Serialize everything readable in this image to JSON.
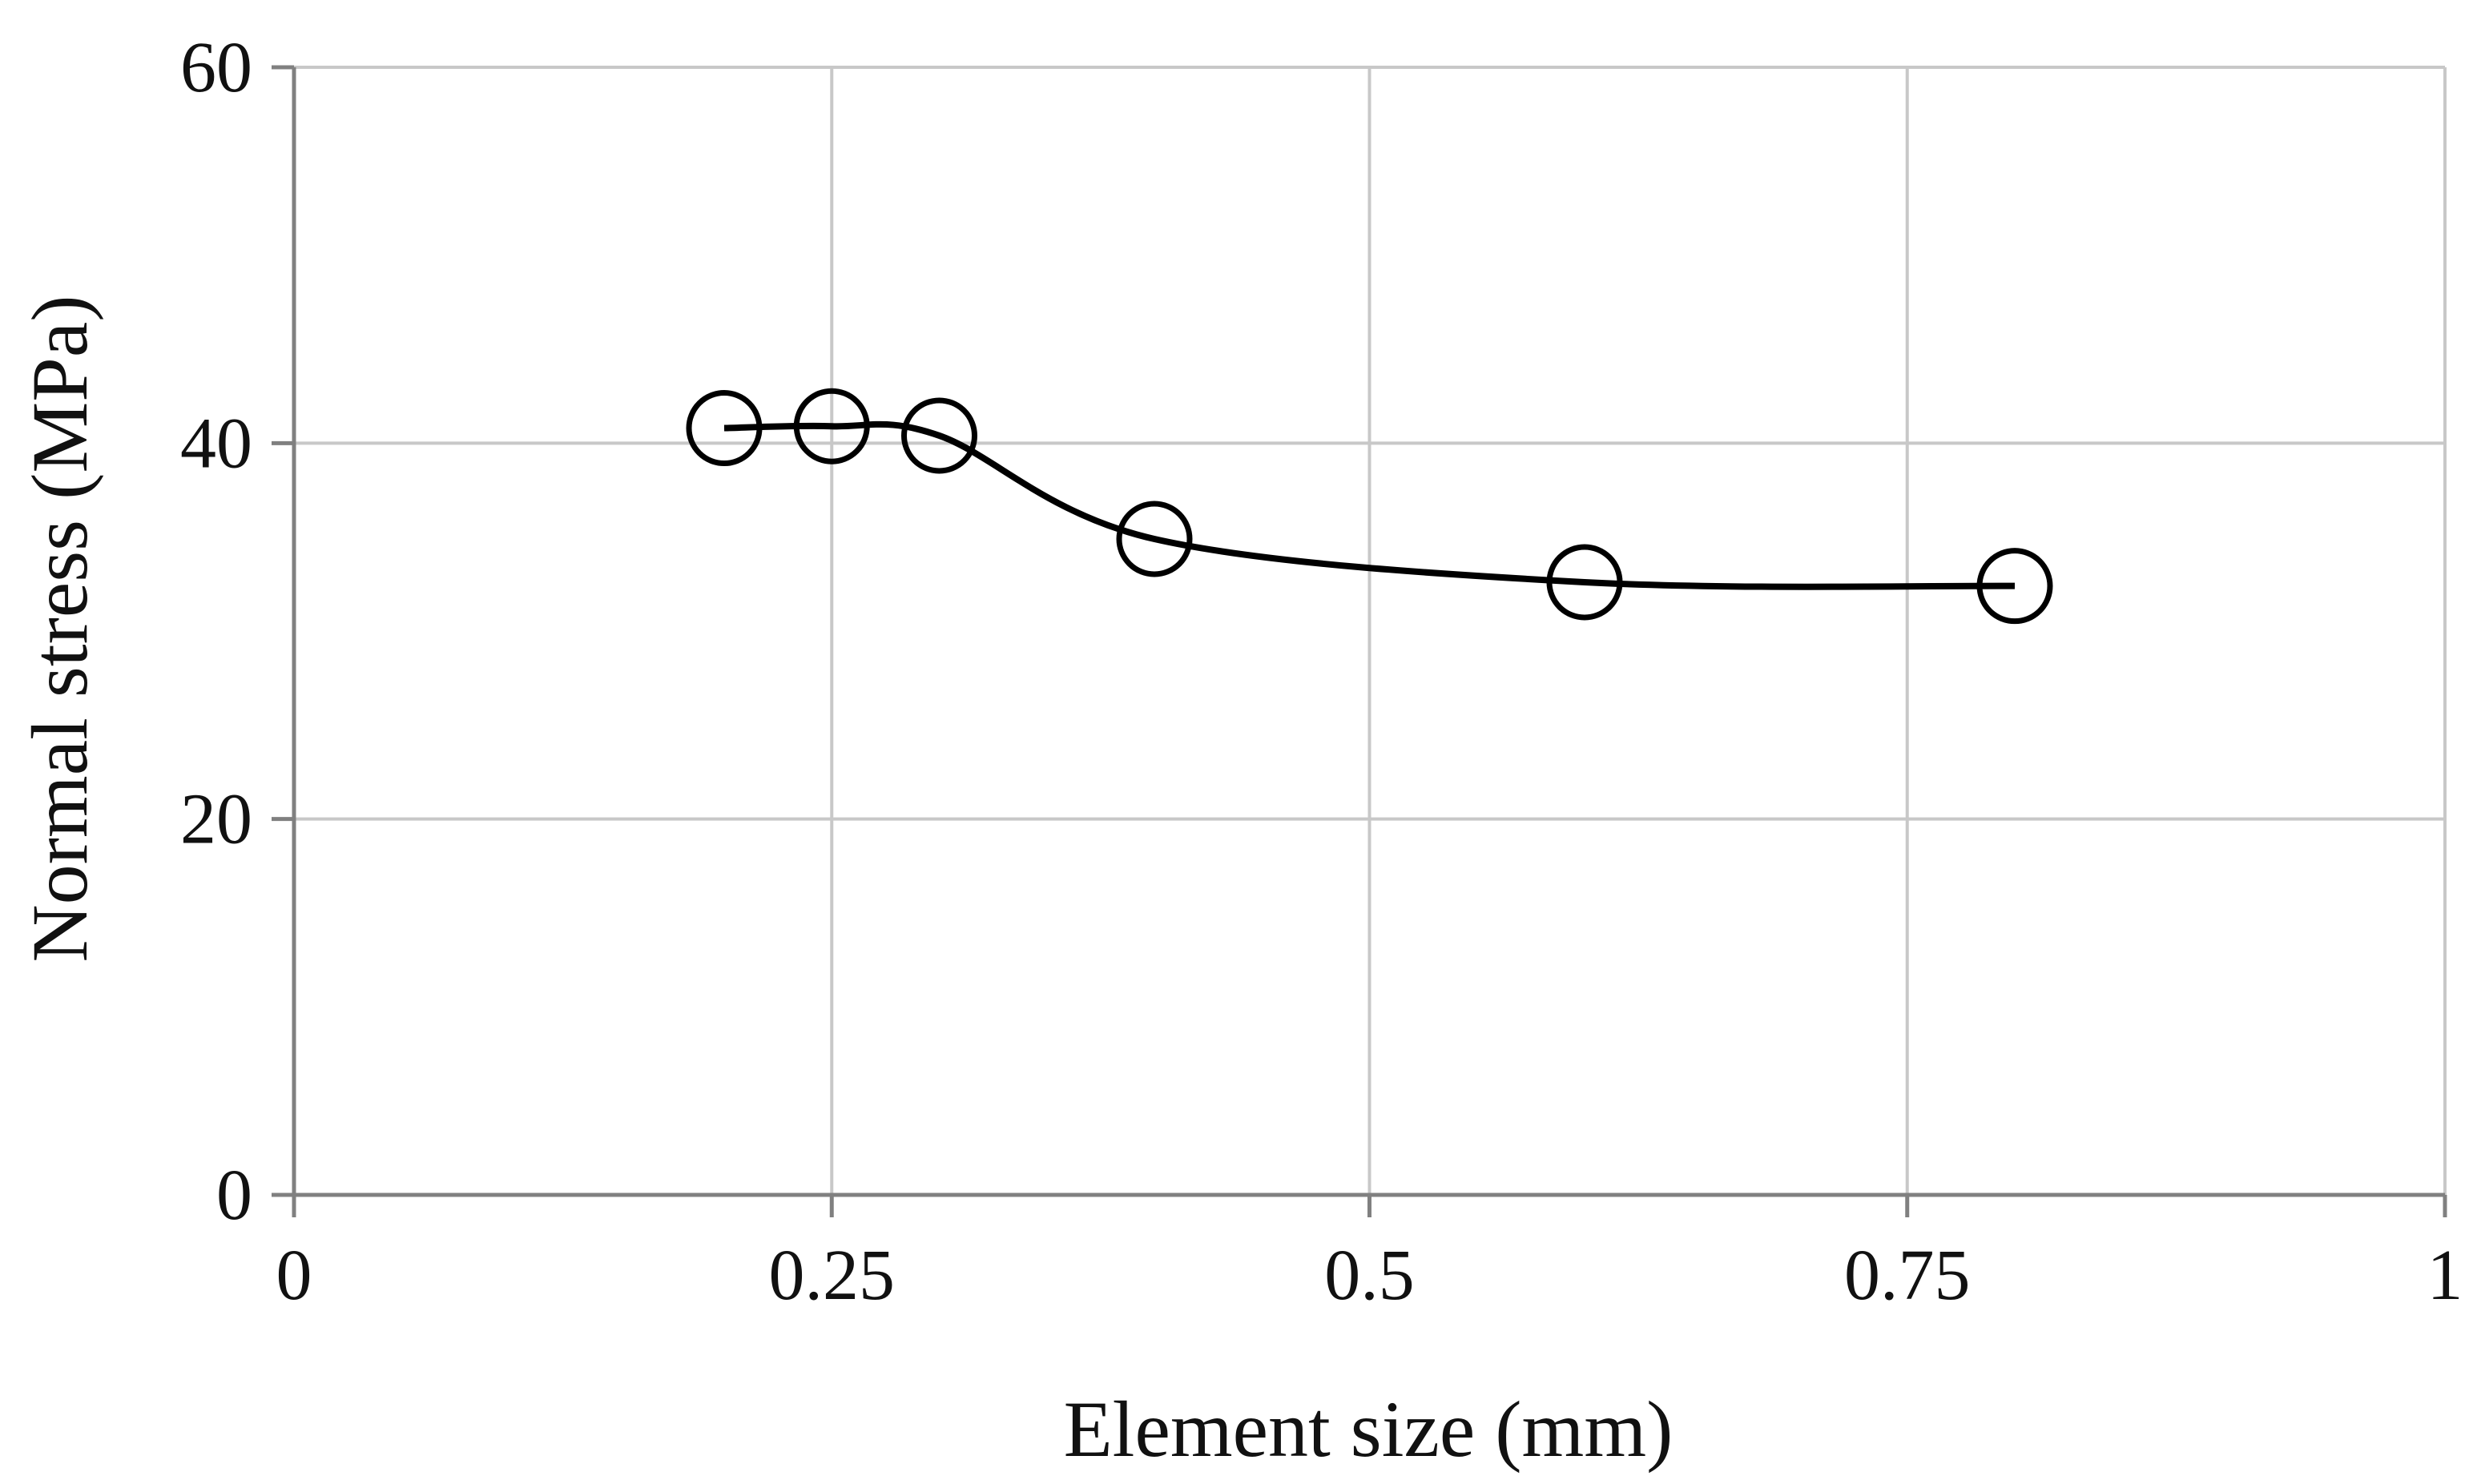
{
  "chart_data": {
    "type": "scatter",
    "title": "",
    "xlabel": "Element size (mm)",
    "ylabel": "Normal stress (MPa)",
    "xlim": [
      0,
      1
    ],
    "ylim": [
      0,
      60
    ],
    "xticks": [
      0,
      0.25,
      0.5,
      0.75,
      1
    ],
    "xtick_labels": [
      "0",
      "0.25",
      "0.5",
      "0.75",
      "1"
    ],
    "yticks": [
      0,
      20,
      40,
      60
    ],
    "ytick_labels": [
      "0",
      "20",
      "40",
      "60"
    ],
    "grid": true,
    "legend": "none",
    "series": [
      {
        "name": "Normal stress",
        "marker": "open-circle",
        "line": "smooth",
        "x": [
          0.2,
          0.25,
          0.3,
          0.4,
          0.6,
          0.8
        ],
        "y": [
          40.8,
          40.9,
          40.4,
          34.9,
          32.6,
          32.4
        ]
      }
    ],
    "colors": {
      "line": "#000000",
      "grid": "#c8c8c8",
      "axis": "#808080",
      "marker_fill": "#ffffff"
    }
  }
}
